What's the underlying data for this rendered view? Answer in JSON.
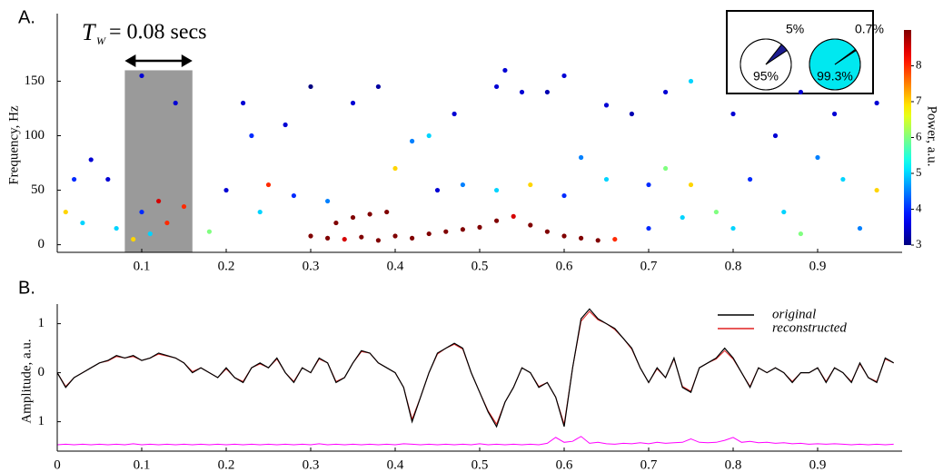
{
  "chart_data": [
    {
      "type": "scatter",
      "panel_label": "A.",
      "ylabel": "Frequency, Hz",
      "annotation": {
        "symbol": "T",
        "subscript": "W",
        "text": "= 0.08 secs"
      },
      "window_xlim": [
        0.08,
        0.16
      ],
      "window_ylim": [
        -7,
        160
      ],
      "xlim": [
        0,
        1
      ],
      "ylim": [
        -7,
        212
      ],
      "xticks": [
        0.1,
        0.2,
        0.3,
        0.4,
        0.5,
        0.6,
        0.7,
        0.8,
        0.9
      ],
      "yticks": [
        0,
        50,
        100,
        150
      ],
      "colormap": "jet",
      "clim": [
        3,
        9
      ],
      "cticks": [
        3,
        4,
        5,
        6,
        7,
        8
      ],
      "clabel": "Power, a.u.",
      "x": [
        0.3,
        0.32,
        0.34,
        0.36,
        0.38,
        0.4,
        0.42,
        0.44,
        0.46,
        0.48,
        0.5,
        0.52,
        0.54,
        0.56,
        0.58,
        0.6,
        0.62,
        0.64,
        0.66,
        0.33,
        0.35,
        0.37,
        0.39,
        0.09,
        0.11,
        0.13,
        0.15,
        0.12,
        0.1,
        0.02,
        0.04,
        0.06,
        0.1,
        0.14,
        0.22,
        0.23,
        0.27,
        0.3,
        0.35,
        0.38,
        0.42,
        0.44,
        0.47,
        0.52,
        0.53,
        0.55,
        0.58,
        0.6,
        0.62,
        0.65,
        0.68,
        0.72,
        0.75,
        0.8,
        0.85,
        0.88,
        0.92,
        0.97,
        0.25,
        0.28,
        0.32,
        0.4,
        0.45,
        0.48,
        0.52,
        0.56,
        0.6,
        0.65,
        0.7,
        0.72,
        0.75,
        0.78,
        0.82,
        0.86,
        0.9,
        0.93,
        0.97,
        0.01,
        0.03,
        0.07,
        0.18,
        0.2,
        0.24,
        0.7,
        0.74,
        0.8,
        0.88,
        0.95
      ],
      "y": [
        8,
        6,
        5,
        7,
        4,
        8,
        6,
        10,
        12,
        14,
        16,
        22,
        26,
        18,
        12,
        8,
        6,
        4,
        5,
        20,
        25,
        28,
        30,
        5,
        10,
        20,
        35,
        40,
        30,
        60,
        78,
        60,
        155,
        130,
        130,
        100,
        110,
        145,
        130,
        145,
        95,
        100,
        120,
        145,
        160,
        140,
        140,
        155,
        80,
        128,
        120,
        140,
        150,
        120,
        100,
        140,
        120,
        130,
        55,
        45,
        40,
        70,
        50,
        55,
        50,
        55,
        45,
        60,
        55,
        70,
        55,
        30,
        60,
        30,
        80,
        60,
        50,
        30,
        20,
        15,
        12,
        50,
        30,
        15,
        25,
        15,
        10,
        15
      ],
      "power": [
        9,
        9,
        8.5,
        9,
        9,
        9,
        9,
        9,
        9,
        9,
        9,
        9,
        8.5,
        9,
        9,
        9,
        9,
        9,
        8,
        9,
        9,
        9,
        9,
        7,
        5,
        8,
        8,
        8.5,
        4,
        4,
        3.5,
        3.5,
        3.5,
        3.5,
        3.5,
        4,
        3.5,
        3,
        3.5,
        3.2,
        4.5,
        5,
        3.5,
        3.5,
        3.5,
        3.5,
        3.3,
        3.5,
        4.5,
        3.5,
        3.3,
        3.5,
        5,
        3.5,
        3.5,
        3.5,
        3.5,
        3.5,
        8,
        4,
        4.5,
        7,
        3.5,
        4.5,
        5,
        7,
        4,
        5,
        4,
        6,
        7,
        6,
        4,
        5,
        4.5,
        5,
        7,
        7,
        5,
        5,
        6,
        3.5,
        5,
        4,
        5,
        5,
        6,
        4.5
      ],
      "pies": [
        {
          "values": [
            95,
            5
          ],
          "value_labels": [
            "95%",
            "5%"
          ],
          "colors": [
            "#ffffff",
            "#1c1c8f"
          ]
        },
        {
          "values": [
            99.3,
            0.7
          ],
          "value_labels": [
            "99.3%",
            "0.7%"
          ],
          "colors": [
            "#00e8f0",
            "#000000"
          ]
        }
      ]
    },
    {
      "type": "line",
      "panel_label": "B.",
      "ylabel": "Amplitude, a.u.",
      "xlim": [
        0,
        1
      ],
      "ylim": [
        -1.6,
        1.4
      ],
      "xticks": [
        0,
        0.1,
        0.2,
        0.3,
        0.4,
        0.5,
        0.6,
        0.7,
        0.8,
        0.9
      ],
      "yticks": [
        1,
        0,
        {
          "value": -1,
          "label": "1"
        }
      ],
      "x": [
        0,
        0.01,
        0.02,
        0.03,
        0.04,
        0.05,
        0.06,
        0.07,
        0.08,
        0.09,
        0.1,
        0.11,
        0.12,
        0.13,
        0.14,
        0.15,
        0.16,
        0.17,
        0.18,
        0.19,
        0.2,
        0.21,
        0.22,
        0.23,
        0.24,
        0.25,
        0.26,
        0.27,
        0.28,
        0.29,
        0.3,
        0.31,
        0.32,
        0.33,
        0.34,
        0.35,
        0.36,
        0.37,
        0.38,
        0.39,
        0.4,
        0.41,
        0.42,
        0.43,
        0.44,
        0.45,
        0.46,
        0.47,
        0.48,
        0.49,
        0.5,
        0.51,
        0.52,
        0.53,
        0.54,
        0.55,
        0.56,
        0.57,
        0.58,
        0.59,
        0.6,
        0.61,
        0.62,
        0.63,
        0.64,
        0.65,
        0.66,
        0.67,
        0.68,
        0.69,
        0.7,
        0.71,
        0.72,
        0.73,
        0.74,
        0.75,
        0.76,
        0.77,
        0.78,
        0.79,
        0.8,
        0.81,
        0.82,
        0.83,
        0.84,
        0.85,
        0.86,
        0.87,
        0.88,
        0.89,
        0.9,
        0.91,
        0.92,
        0.93,
        0.94,
        0.95,
        0.96,
        0.97,
        0.98,
        0.99
      ],
      "series": [
        {
          "name": "original",
          "color": "#000000",
          "values": [
            0,
            -0.3,
            -0.1,
            0,
            0.1,
            0.2,
            0.25,
            0.35,
            0.3,
            0.35,
            0.25,
            0.3,
            0.4,
            0.35,
            0.3,
            0.2,
            0,
            0.1,
            0,
            -0.1,
            0.1,
            -0.1,
            -0.2,
            0.1,
            0.2,
            0.1,
            0.3,
            0,
            -0.2,
            0.1,
            0,
            0.3,
            0.2,
            -0.2,
            -0.1,
            0.2,
            0.45,
            0.4,
            0.2,
            0.1,
            0,
            -0.3,
            -1,
            -0.5,
            0,
            0.4,
            0.5,
            0.6,
            0.5,
            0,
            -0.4,
            -0.8,
            -1.1,
            -0.6,
            -0.3,
            0.1,
            0,
            -0.3,
            -0.2,
            -0.5,
            -1.1,
            0.1,
            1.1,
            1.3,
            1.1,
            1,
            0.9,
            0.7,
            0.5,
            0.1,
            -0.2,
            0.1,
            -0.1,
            0.3,
            -0.3,
            -0.4,
            0.1,
            0.2,
            0.3,
            0.5,
            0.3,
            0,
            -0.3,
            0.1,
            0,
            0.1,
            0,
            -0.2,
            0,
            0,
            0.1,
            -0.2,
            0.1,
            0,
            -0.2,
            0.2,
            -0.1,
            -0.2,
            0.3,
            0.2
          ]
        },
        {
          "name": "reconstructed",
          "color": "#e02020",
          "values": [
            0,
            -0.28,
            -0.1,
            0,
            0.1,
            0.2,
            0.24,
            0.33,
            0.3,
            0.33,
            0.25,
            0.3,
            0.38,
            0.34,
            0.3,
            0.2,
            0.02,
            0.1,
            0,
            -0.1,
            0.08,
            -0.1,
            -0.18,
            0.1,
            0.18,
            0.1,
            0.28,
            0,
            -0.18,
            0.1,
            0,
            0.28,
            0.2,
            -0.18,
            -0.1,
            0.2,
            0.43,
            0.4,
            0.2,
            0.1,
            0,
            -0.3,
            -0.95,
            -0.5,
            0,
            0.38,
            0.5,
            0.58,
            0.48,
            0,
            -0.4,
            -0.78,
            -1.05,
            -0.6,
            -0.3,
            0.1,
            0,
            -0.28,
            -0.2,
            -0.5,
            -1.05,
            0.1,
            1.05,
            1.25,
            1.08,
            1,
            0.88,
            0.7,
            0.48,
            0.1,
            -0.2,
            0.08,
            -0.1,
            0.28,
            -0.28,
            -0.38,
            0.1,
            0.2,
            0.28,
            0.45,
            0.28,
            0,
            -0.28,
            0.1,
            0,
            0.1,
            0,
            -0.18,
            0,
            0,
            0.1,
            -0.18,
            0.1,
            0,
            -0.18,
            0.18,
            -0.1,
            -0.18,
            0.28,
            0.2
          ]
        },
        {
          "color": "#ff00ff",
          "values": [
            -1.47,
            -1.46,
            -1.47,
            -1.46,
            -1.47,
            -1.46,
            -1.47,
            -1.46,
            -1.47,
            -1.45,
            -1.47,
            -1.46,
            -1.47,
            -1.46,
            -1.47,
            -1.46,
            -1.47,
            -1.46,
            -1.47,
            -1.46,
            -1.47,
            -1.46,
            -1.47,
            -1.46,
            -1.47,
            -1.46,
            -1.47,
            -1.46,
            -1.47,
            -1.46,
            -1.47,
            -1.45,
            -1.47,
            -1.46,
            -1.47,
            -1.46,
            -1.47,
            -1.46,
            -1.47,
            -1.46,
            -1.47,
            -1.45,
            -1.46,
            -1.47,
            -1.46,
            -1.47,
            -1.46,
            -1.47,
            -1.46,
            -1.47,
            -1.45,
            -1.47,
            -1.46,
            -1.47,
            -1.46,
            -1.47,
            -1.46,
            -1.47,
            -1.44,
            -1.32,
            -1.42,
            -1.4,
            -1.3,
            -1.44,
            -1.42,
            -1.45,
            -1.46,
            -1.44,
            -1.45,
            -1.43,
            -1.45,
            -1.42,
            -1.44,
            -1.43,
            -1.42,
            -1.35,
            -1.42,
            -1.43,
            -1.42,
            -1.38,
            -1.32,
            -1.42,
            -1.4,
            -1.43,
            -1.42,
            -1.44,
            -1.43,
            -1.45,
            -1.44,
            -1.46,
            -1.45,
            -1.46,
            -1.45,
            -1.46,
            -1.47,
            -1.46,
            -1.47,
            -1.46,
            -1.47,
            -1.46
          ]
        }
      ]
    }
  ]
}
